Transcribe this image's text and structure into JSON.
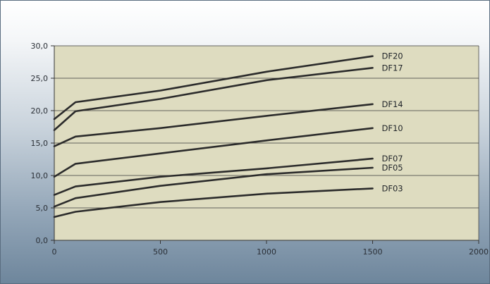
{
  "chart_data": {
    "type": "line",
    "xlim": [
      0,
      2000
    ],
    "ylim": [
      0,
      30
    ],
    "x_ticks": [
      "0",
      "500",
      "1000",
      "1500",
      "2000"
    ],
    "y_ticks": [
      "0,0",
      "5,0",
      "10,0",
      "15,0",
      "20,0",
      "25,0",
      "30,0"
    ],
    "grid": "horizontal",
    "colors": {
      "plot_bg": "#dedcc0",
      "line": "#2b2b2b",
      "grid": "#3a3a3a"
    },
    "series": [
      {
        "name": "DF20",
        "x": [
          0,
          100,
          500,
          1000,
          1500
        ],
        "y": [
          18.7,
          21.3,
          23.1,
          26.0,
          28.4
        ]
      },
      {
        "name": "DF17",
        "x": [
          0,
          100,
          500,
          1000,
          1500
        ],
        "y": [
          17.0,
          19.9,
          21.8,
          24.7,
          26.6
        ]
      },
      {
        "name": "DF14",
        "x": [
          0,
          100,
          500,
          1000,
          1500
        ],
        "y": [
          14.5,
          16.0,
          17.3,
          19.2,
          21.0
        ]
      },
      {
        "name": "DF10",
        "x": [
          0,
          100,
          500,
          1000,
          1500
        ],
        "y": [
          9.8,
          11.8,
          13.4,
          15.4,
          17.3
        ]
      },
      {
        "name": "DF07",
        "x": [
          0,
          100,
          500,
          1000,
          1500
        ],
        "y": [
          7.0,
          8.3,
          9.8,
          11.1,
          12.6
        ]
      },
      {
        "name": "DF05",
        "x": [
          0,
          100,
          500,
          1000,
          1500
        ],
        "y": [
          5.2,
          6.5,
          8.4,
          10.2,
          11.2
        ]
      },
      {
        "name": "DF03",
        "x": [
          0,
          100,
          500,
          1000,
          1500
        ],
        "y": [
          3.6,
          4.4,
          5.9,
          7.2,
          8.0
        ]
      }
    ]
  }
}
